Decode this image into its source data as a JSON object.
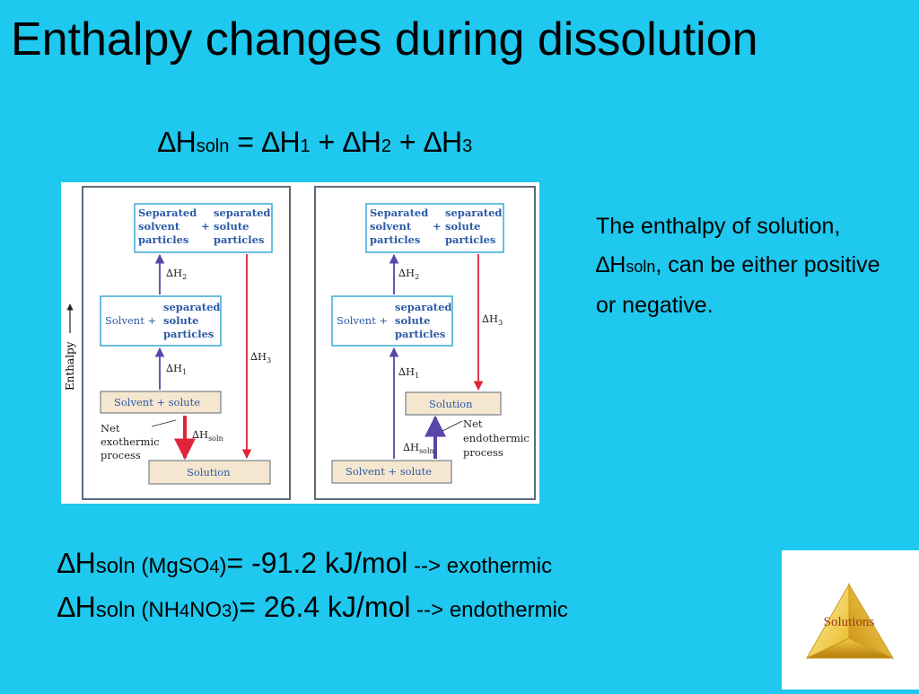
{
  "slide": {
    "title": "Enthalpy changes during dissolution",
    "equation": {
      "delta": "∆",
      "h": "H",
      "soln": "soln",
      "eq": " = ",
      "h1": "H",
      "one": "1",
      "plus1": " + ",
      "h2": "H",
      "two": "2",
      "plus2": " + ",
      "h3": "H",
      "three": "3"
    },
    "description": {
      "part1": "The enthalpy of solution, ",
      "delta": "∆",
      "h": "H",
      "soln": "soln",
      "part2": ", can be either positive or negative."
    },
    "results": [
      {
        "delta": "∆",
        "h": "H",
        "soln": "soln",
        "compound_pre": " (MgSO",
        "compound_sub": "4",
        "compound_post": ")",
        "value": "= -91.2 kJ/mol",
        "arrow": " --> exothermic"
      },
      {
        "delta": "∆",
        "h": "H",
        "soln": "soln",
        "compound_pre": " (NH",
        "compound_sub": "4",
        "compound_mid": "NO",
        "compound_sub2": "3",
        "compound_post": ")",
        "value": "= 26.4 kJ/mol",
        "arrow": " --> endothermic"
      }
    ],
    "logo_label": "Solutions"
  },
  "diagram": {
    "axis_label": "Enthalpy",
    "top_box_left": "Separated",
    "top_box_left2": "solvent",
    "top_box_left3": "particles",
    "top_box_plus": "+",
    "top_box_right": "separated",
    "top_box_right2": "solute",
    "top_box_right3": "particles",
    "mid_box_left": "Solvent +",
    "mid_box_right": "separated",
    "mid_box_right2": "solute",
    "mid_box_right3": "particles",
    "dH2": "∆H",
    "dH2_sub": "2",
    "dH1": "∆H",
    "dH1_sub": "1",
    "dH3": "∆H",
    "dH3_sub": "3",
    "dHsoln": "∆H",
    "dHsoln_sub": "soln",
    "solvent_solute": "Solvent + solute",
    "solution": "Solution",
    "net": "Net",
    "exothermic": "exothermic",
    "endothermic": "endothermic",
    "process": "process",
    "colors": {
      "box_border": "#39a9d8",
      "box_fill_tan": "#f5e6cf",
      "arrow_blue": "#5a45a8",
      "arrow_red": "#e0243a",
      "panel_border": "#5b6a78"
    }
  }
}
